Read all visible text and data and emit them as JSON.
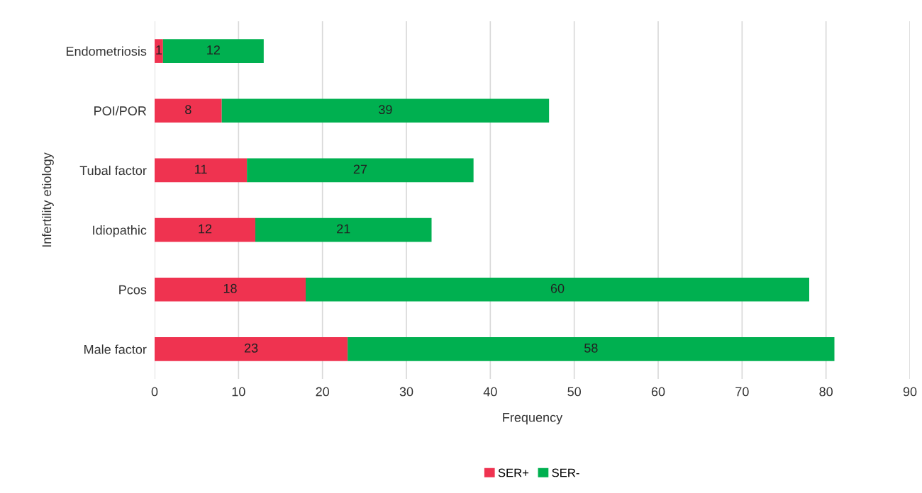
{
  "chart_data": {
    "type": "bar",
    "orientation": "horizontal",
    "stacked": true,
    "xlabel": "Frequency",
    "ylabel": "Infertility etiology",
    "categories": [
      "Endometriosis",
      "POI/POR",
      "Tubal factor",
      "Idiopathic",
      "Pcos",
      "Male factor"
    ],
    "series": [
      {
        "name": "SER+",
        "color": "#ef3350",
        "values": [
          1,
          8,
          11,
          12,
          18,
          23
        ]
      },
      {
        "name": "SER-",
        "color": "#00b050",
        "values": [
          12,
          39,
          27,
          21,
          60,
          58
        ]
      }
    ],
    "xlim": [
      0,
      90
    ],
    "xticks": [
      0,
      10,
      20,
      30,
      40,
      50,
      60,
      70,
      80,
      90
    ],
    "grid": "x",
    "legend": "bottom",
    "data_labels": true
  }
}
